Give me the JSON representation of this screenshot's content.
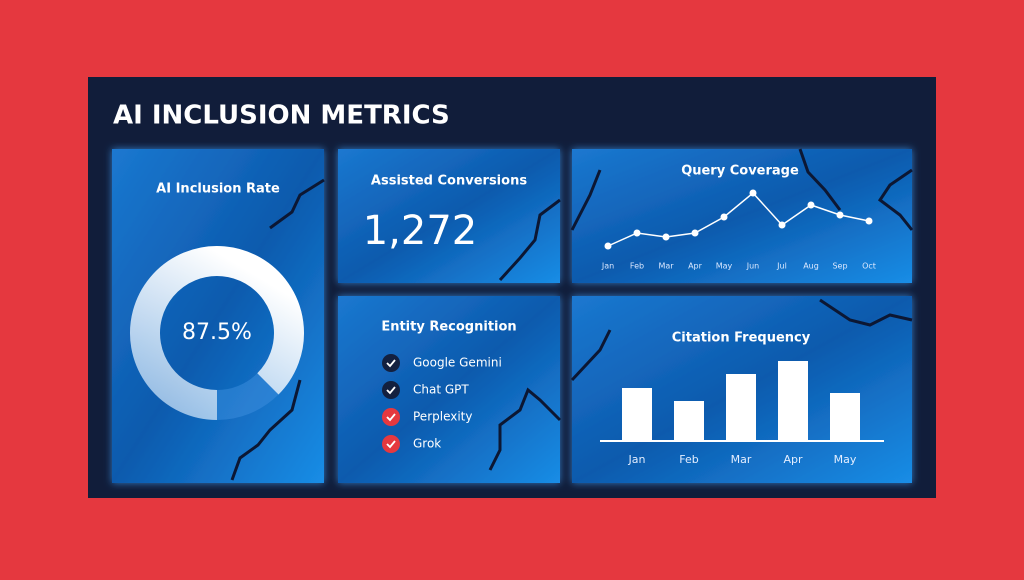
{
  "title": "AI INCLUSION METRICS",
  "kpi": {
    "title": "Assisted Conversions",
    "value": "1,272"
  },
  "entities": {
    "title": "Entity Recognition",
    "items": [
      "Google Gemini",
      "Chat GPT",
      "Perplexity",
      "Grok"
    ]
  },
  "chart_data": [
    {
      "type": "gauge",
      "title": "AI Inclusion Rate",
      "values": [
        87.5
      ],
      "value_labels": [
        "87.5%"
      ],
      "range": [
        0,
        100
      ],
      "color": "#ffffff"
    },
    {
      "type": "line",
      "title": "Query Coverage",
      "categories": [
        "Jan",
        "Feb",
        "Mar",
        "Apr",
        "May",
        "Jun",
        "Jul",
        "Aug",
        "Sep",
        "Oct"
      ],
      "values": [
        14,
        27,
        23,
        27,
        43,
        67,
        35,
        55,
        45,
        39
      ],
      "ylim": [
        0,
        70
      ],
      "color": "#ffffff"
    },
    {
      "type": "bar",
      "title": "Citation Frequency",
      "categories": [
        "Jan",
        "Feb",
        "Mar",
        "Apr",
        "May"
      ],
      "values": [
        53,
        40,
        67,
        80,
        48
      ],
      "ylim": [
        0,
        90
      ],
      "color": "#ffffff"
    }
  ]
}
